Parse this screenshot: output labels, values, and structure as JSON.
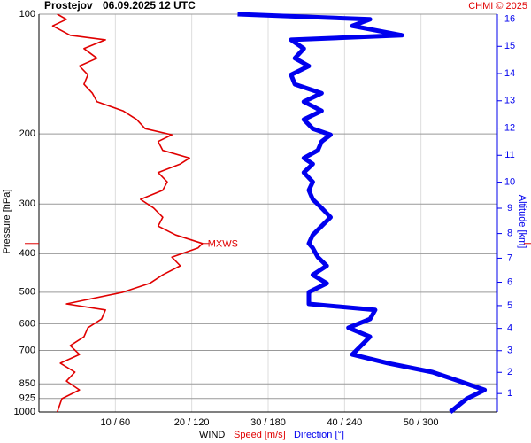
{
  "chart_data": {
    "type": "line",
    "title": "Prostejov",
    "subtitle": "06.09.2025 12 UTC",
    "credit": "CHMI © 2025",
    "ylabel": "Pressure [hPa]",
    "y2label": "Altitude [km]",
    "xlabel": "WIND",
    "xlabel_speed": "Speed [m/s]",
    "xlabel_direction": "Direction [°]",
    "annotation": "MXWS",
    "log_y": true,
    "grid": true,
    "ylim": [
      1000,
      100
    ],
    "yticks": [
      100,
      200,
      300,
      400,
      500,
      600,
      700,
      850,
      925,
      1000
    ],
    "xlim": [
      0,
      60
    ],
    "x2lim": [
      0,
      360
    ],
    "xticks": [
      {
        "value": 10,
        "label": "10 / 60"
      },
      {
        "value": 20,
        "label": "20 / 120"
      },
      {
        "value": 30,
        "label": "30 / 180"
      },
      {
        "value": 40,
        "label": "40 / 240"
      },
      {
        "value": 50,
        "label": "50 / 300"
      }
    ],
    "y2ticks": [
      1,
      2,
      3,
      4,
      5,
      6,
      7,
      8,
      9,
      10,
      11,
      12,
      13,
      14,
      15,
      16
    ],
    "pressure": [
      1000,
      926,
      880,
      836,
      794,
      754,
      717,
      681,
      647,
      614,
      584,
      554,
      535,
      500,
      475,
      452,
      429,
      408,
      387,
      377,
      359,
      341,
      324,
      307,
      292,
      277,
      264,
      250,
      238,
      230,
      220,
      209,
      201,
      194,
      184,
      175,
      166,
      158,
      150,
      142,
      135,
      129,
      122,
      116,
      113,
      107,
      103,
      100
    ],
    "series": [
      {
        "name": "Speed [m/s]",
        "color": "#e00000",
        "axis": "x",
        "values": [
          2.4,
          3,
          5.3,
          3.6,
          4.7,
          2.8,
          5.3,
          4.1,
          5.9,
          6.4,
          8.2,
          8.7,
          3.6,
          11,
          14.5,
          16.2,
          18.5,
          17.4,
          20.8,
          21.4,
          17.9,
          15.6,
          16.2,
          15,
          13.3,
          16.2,
          16.8,
          15.6,
          18.5,
          19.7,
          16.2,
          15.6,
          17.4,
          13.9,
          12.8,
          11,
          7.6,
          7,
          5.9,
          6.4,
          5.3,
          7.6,
          5.9,
          8.7,
          4.1,
          1.8,
          3.6,
          2.4
        ]
      },
      {
        "name": "Direction [°]",
        "color": "#0000ee",
        "axis": "x2",
        "values": [
          323,
          336,
          350,
          330,
          309,
          274,
          246,
          253,
          260,
          243,
          260,
          264,
          212,
          212,
          226,
          215,
          226,
          219,
          215,
          212,
          215,
          222,
          229,
          222,
          215,
          212,
          215,
          208,
          215,
          208,
          219,
          222,
          229,
          215,
          208,
          222,
          208,
          222,
          201,
          198,
          212,
          201,
          208,
          198,
          285,
          246,
          260,
          156
        ]
      }
    ]
  }
}
